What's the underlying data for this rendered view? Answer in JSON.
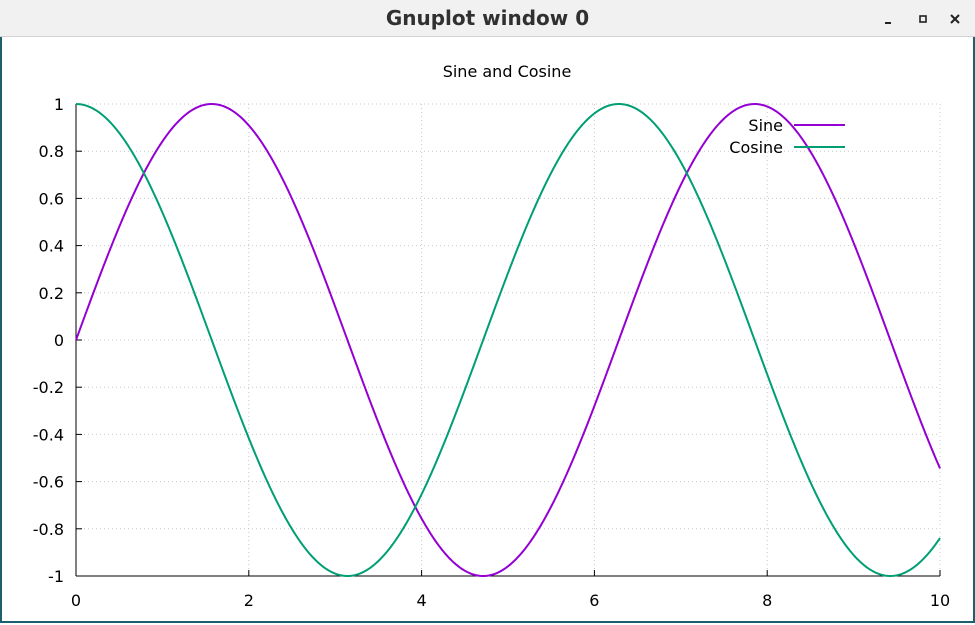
{
  "window": {
    "title": "Gnuplot window 0",
    "buttons": {
      "minimize": "minimize-icon",
      "maximize": "maximize-icon",
      "close": "close-icon"
    }
  },
  "chart_data": {
    "type": "line",
    "title": "Sine and Cosine",
    "xlabel": "",
    "ylabel": "",
    "xlim": [
      0,
      10
    ],
    "ylim": [
      -1,
      1
    ],
    "xticks": [
      0,
      2,
      4,
      6,
      8,
      10
    ],
    "yticks": [
      1,
      0.8,
      0.6,
      0.4,
      0.2,
      0,
      -0.2,
      -0.4,
      -0.6,
      -0.8,
      -1
    ],
    "grid": true,
    "legend_position": "top-right",
    "series": [
      {
        "name": "Sine",
        "function": "sin(x)",
        "color": "#9400d3"
      },
      {
        "name": "Cosine",
        "function": "cos(x)",
        "color": "#009e73"
      }
    ]
  }
}
